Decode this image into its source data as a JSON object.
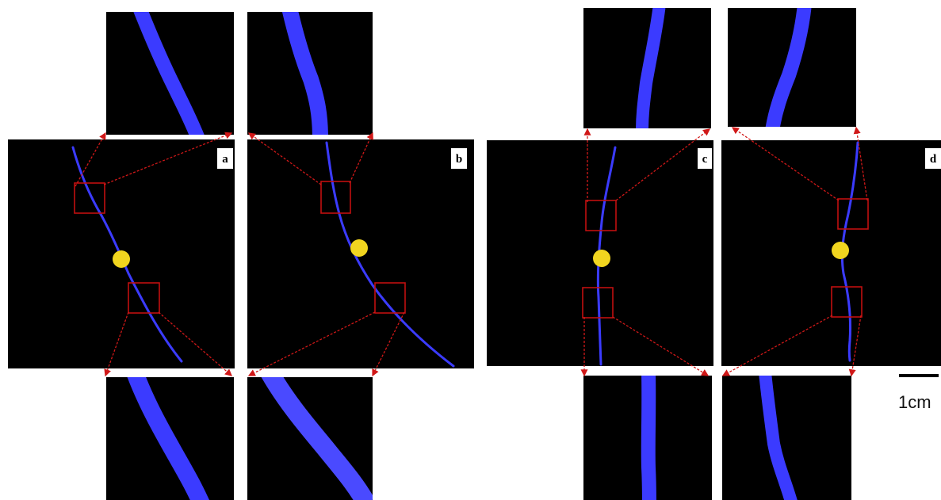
{
  "figure": {
    "panels": [
      {
        "label": "a"
      },
      {
        "label": "b"
      },
      {
        "label": "c"
      },
      {
        "label": "d"
      }
    ],
    "scale_bar": {
      "label": "1cm"
    },
    "colors": {
      "background": "#000000",
      "vessel": "#3b3bff",
      "marker": "#f1d51f",
      "roi_box": "#c01010",
      "arrow": "#d01818",
      "label_box": "#ffffff"
    }
  }
}
